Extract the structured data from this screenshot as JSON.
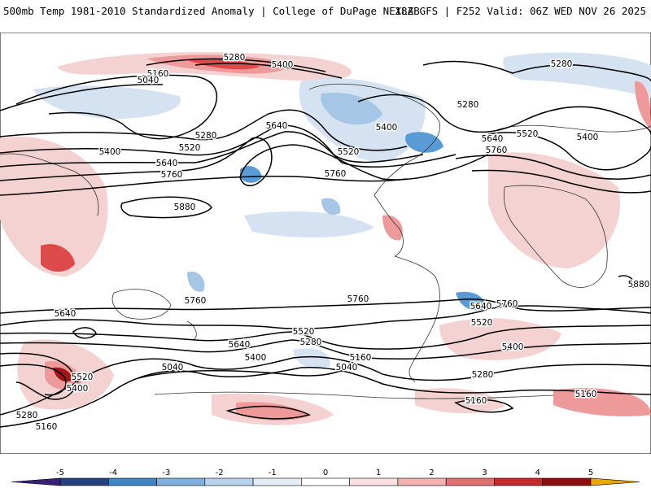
{
  "header": {
    "title_left": "500mb Temp 1981-2010 Standardized Anomaly | College of DuPage NEXLAB",
    "title_right": "18Z GFS | F252 Valid: 06Z WED NOV 26 2025"
  },
  "colors": {
    "contour": "#000000",
    "land_outline": "#333333",
    "pos1": "#f5d2d2",
    "pos2": "#ee9a9a",
    "pos3": "#dc4a4a",
    "pos4": "#a01515",
    "neg1": "#d4e2f2",
    "neg2": "#a6c6e6",
    "neg3": "#5b9bd5",
    "neg4": "#2c5aa0"
  },
  "contour_labels": [
    "5280",
    "5400",
    "5160",
    "5040",
    "5520",
    "5640",
    "5760",
    "5880"
  ],
  "map_labels": [
    {
      "text": "5280",
      "region": "arctic-pacific"
    },
    {
      "text": "5400",
      "region": "arctic-pacific"
    },
    {
      "text": "5160",
      "region": "north-pacific"
    },
    {
      "text": "5040",
      "region": "north-pacific"
    },
    {
      "text": "5640",
      "region": "north-pacific"
    },
    {
      "text": "5280",
      "region": "north-pacific"
    },
    {
      "text": "5400",
      "region": "north-pacific"
    },
    {
      "text": "5520",
      "region": "north-pacific"
    },
    {
      "text": "5640",
      "region": "north-pacific"
    },
    {
      "text": "5760",
      "region": "north-pacific"
    },
    {
      "text": "5880",
      "region": "subtropical-pacific"
    },
    {
      "text": "5520",
      "region": "north-america"
    },
    {
      "text": "5400",
      "region": "north-america"
    },
    {
      "text": "5760",
      "region": "north-america"
    },
    {
      "text": "5280",
      "region": "north-atlantic"
    },
    {
      "text": "5280",
      "region": "arctic-eurasia"
    },
    {
      "text": "5400",
      "region": "europe"
    },
    {
      "text": "5520",
      "region": "europe"
    },
    {
      "text": "5640",
      "region": "europe"
    },
    {
      "text": "5760",
      "region": "europe"
    },
    {
      "text": "5880",
      "region": "africa"
    },
    {
      "text": "5640",
      "region": "south-indian"
    },
    {
      "text": "5760",
      "region": "south-pacific"
    },
    {
      "text": "5760",
      "region": "south-pacific"
    },
    {
      "text": "5640",
      "region": "south-america"
    },
    {
      "text": "5760",
      "region": "south-atlantic"
    },
    {
      "text": "5520",
      "region": "south-atlantic"
    },
    {
      "text": "5400",
      "region": "south-atlantic"
    },
    {
      "text": "5520",
      "region": "south-pacific"
    },
    {
      "text": "5280",
      "region": "south-pacific"
    },
    {
      "text": "5640",
      "region": "south-pacific"
    },
    {
      "text": "5400",
      "region": "south-pacific"
    },
    {
      "text": "5160",
      "region": "south-pacific"
    },
    {
      "text": "5040",
      "region": "south-pacific"
    },
    {
      "text": "5040",
      "region": "southern-ocean"
    },
    {
      "text": "5520",
      "region": "southern-ocean"
    },
    {
      "text": "5400",
      "region": "southern-ocean"
    },
    {
      "text": "5280",
      "region": "southern-ocean"
    },
    {
      "text": "5160",
      "region": "southern-ocean"
    },
    {
      "text": "5280",
      "region": "south-atlantic"
    },
    {
      "text": "5160",
      "region": "southern-ocean"
    },
    {
      "text": "5160",
      "region": "southern-ocean"
    }
  ],
  "colorbar": {
    "ticks": [
      "-5",
      "-4",
      "-3",
      "-2",
      "-1",
      "0",
      "1",
      "2",
      "3",
      "4",
      "5"
    ],
    "colors": [
      "#3a1f78",
      "#26427e",
      "#3f84c4",
      "#7fb0dd",
      "#b9d3ec",
      "#e4ecf6",
      "#ffffff",
      "#fbe0e0",
      "#f3b1b1",
      "#e27070",
      "#c62a2a",
      "#8e0d0d",
      "#e8a800"
    ]
  }
}
